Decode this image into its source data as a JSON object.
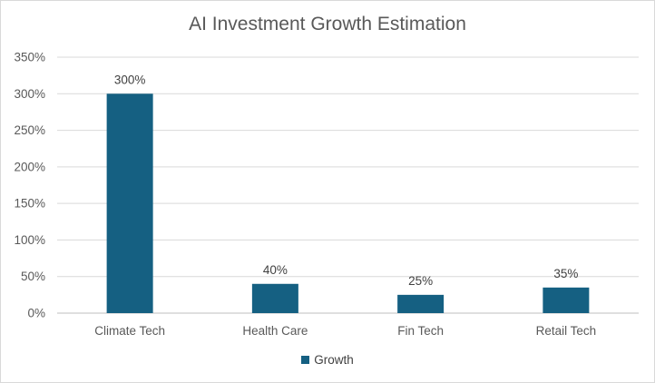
{
  "chart_data": {
    "type": "bar",
    "title": "AI Investment Growth Estimation",
    "xlabel": "",
    "ylabel": "",
    "categories": [
      "Climate Tech",
      "Health Care",
      "Fin Tech",
      "Retail Tech"
    ],
    "series": [
      {
        "name": "Growth",
        "values": [
          300,
          40,
          25,
          35
        ],
        "color": "#156082"
      }
    ],
    "data_labels": [
      "300%",
      "40%",
      "25%",
      "35%"
    ],
    "yticks": [
      0,
      50,
      100,
      150,
      200,
      250,
      300,
      350
    ],
    "ytick_labels": [
      "0%",
      "50%",
      "100%",
      "150%",
      "200%",
      "250%",
      "300%",
      "350%"
    ],
    "ylim": [
      0,
      350
    ],
    "grid": true,
    "legend_position": "bottom"
  }
}
